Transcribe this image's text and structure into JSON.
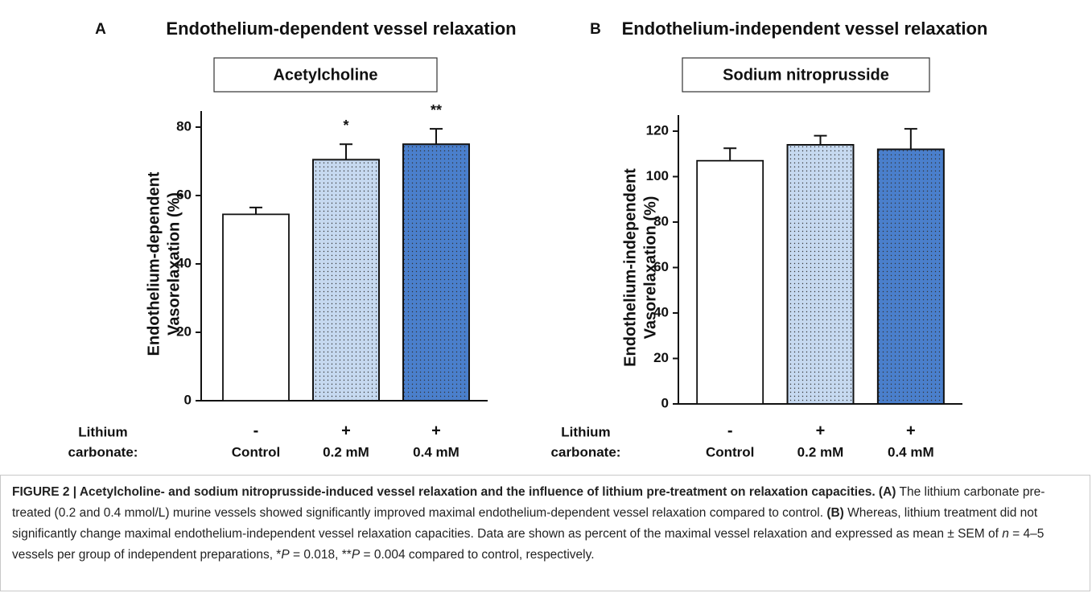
{
  "chart_data": [
    {
      "type": "bar",
      "panel": "A",
      "title": "Endothelium-dependent vessel relaxation",
      "subtitle": "Acetylcholine",
      "ylabel": [
        "Endothelium-dependent",
        "Vasorelaxation (%)"
      ],
      "row_label": [
        "Lithium",
        "carbonate:"
      ],
      "treatment": [
        "-",
        "+",
        "+"
      ],
      "categories": [
        "Control",
        "0.2 mM",
        "0.4 mM"
      ],
      "values": [
        54.5,
        70.5,
        75
      ],
      "errors": [
        2,
        4.5,
        4.5
      ],
      "annotations": [
        null,
        "*",
        "**"
      ],
      "colors": [
        "#ffffff",
        "#c6d9f0",
        "#4a7fcc"
      ],
      "fill_pattern": [
        "none",
        "dots",
        "dots"
      ],
      "ylim": [
        0,
        80
      ],
      "yticks": [
        0,
        20,
        40,
        60,
        80
      ]
    },
    {
      "type": "bar",
      "panel": "B",
      "title": "Endothelium-independent vessel relaxation",
      "subtitle": "Sodium nitroprusside",
      "ylabel": [
        "Endothelium-independent",
        "Vasorelaxation (%)"
      ],
      "row_label": [
        "Lithium",
        "carbonate:"
      ],
      "treatment": [
        "-",
        "+",
        "+"
      ],
      "categories": [
        "Control",
        "0.2 mM",
        "0.4 mM"
      ],
      "values": [
        107,
        114,
        112
      ],
      "errors": [
        5.5,
        4,
        9
      ],
      "colors": [
        "#ffffff",
        "#c6d9f0",
        "#4a7fcc"
      ],
      "fill_pattern": [
        "none",
        "dots",
        "dots"
      ],
      "ylim": [
        0,
        120
      ],
      "yticks": [
        0,
        20,
        40,
        60,
        80,
        100,
        120
      ]
    }
  ],
  "caption": {
    "segments": [
      {
        "text": "FIGURE 2 | Acetylcholine- and sodium nitroprusside-induced vessel relaxation and the influence of lithium pre-treatment on relaxation capacities. (A)",
        "style": "bold"
      },
      {
        "text": " The lithium carbonate pre-treated (0.2 and 0.4 mmol/L) murine vessels showed significantly improved maximal endothelium-dependent vessel relaxation compared to control. ",
        "style": "normal"
      },
      {
        "text": "(B)",
        "style": "bold"
      },
      {
        "text": " Whereas, lithium treatment did not significantly change maximal endothelium-independent vessel relaxation capacities. Data are shown as percent of the maximal vessel relaxation and expressed as mean ± SEM of ",
        "style": "normal"
      },
      {
        "text": "n",
        "style": "italic"
      },
      {
        "text": " = 4–5 vessels per group of independent preparations, *",
        "style": "normal"
      },
      {
        "text": "P",
        "style": "italic"
      },
      {
        "text": " = 0.018, **",
        "style": "normal"
      },
      {
        "text": "P",
        "style": "italic"
      },
      {
        "text": " = 0.004 compared to control, respectively.",
        "style": "normal"
      }
    ]
  }
}
